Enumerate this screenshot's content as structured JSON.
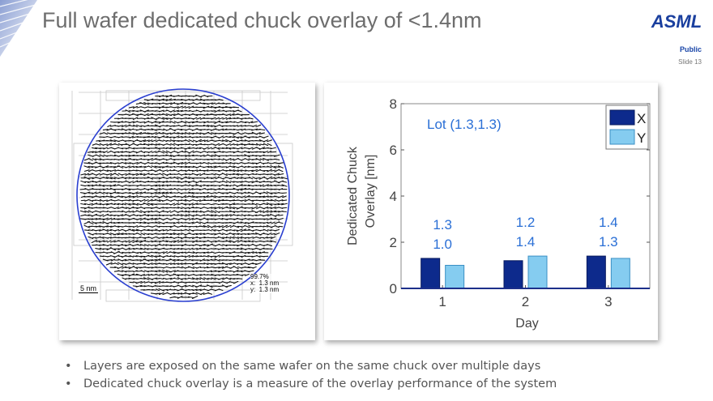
{
  "slide": {
    "title": "Full wafer dedicated chuck overlay of <1.4nm",
    "logo_text": "ASML",
    "classification": "Public",
    "slide_number": "Slide 13",
    "bullets": [
      "Layers are exposed on the same wafer on the same chuck over multiple days",
      "Dedicated chuck overlay is a measure of the overlay performance of the system"
    ],
    "colors": {
      "title": "#6d6d6d",
      "brand_blue": "#1a46a8"
    }
  },
  "wafer_map": {
    "scale_label": "5 nm",
    "stats": [
      "99.7%",
      "x:  1.3 nm",
      "y:  1.3 nm"
    ]
  },
  "chart_data": {
    "type": "bar",
    "categories": [
      "1",
      "2",
      "3"
    ],
    "series": [
      {
        "name": "X",
        "values": [
          1.3,
          1.2,
          1.4
        ],
        "color": "#0d2a8c"
      },
      {
        "name": "Y",
        "values": [
          1.0,
          1.4,
          1.3
        ],
        "color": "#85ccf0"
      }
    ],
    "bar_labels": [
      [
        "1.3",
        "1.0"
      ],
      [
        "1.2",
        "1.4"
      ],
      [
        "1.4",
        "1.3"
      ]
    ],
    "annotation": "Lot (1.3,1.3)",
    "xlabel": "Day",
    "ylabel": [
      "Dedicated Chuck",
      "Overlay [nm]"
    ],
    "ylim": [
      0,
      8
    ],
    "yticks": [
      0,
      2,
      4,
      6,
      8
    ],
    "legend_position": "top-right",
    "grid": false
  }
}
